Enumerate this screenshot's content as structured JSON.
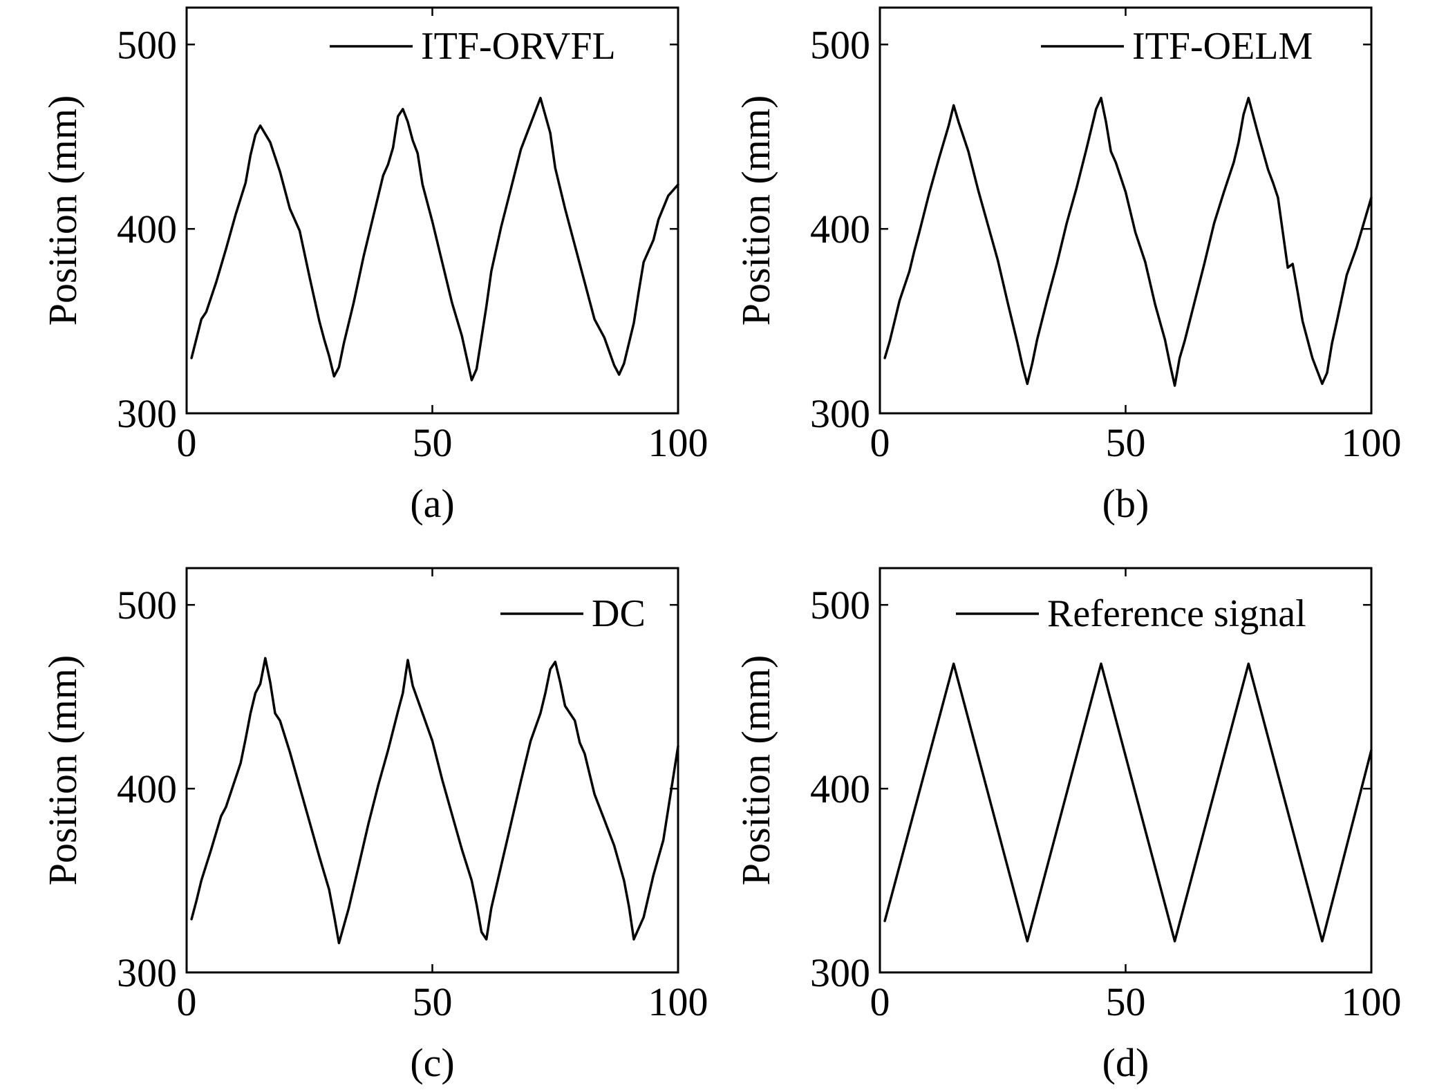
{
  "chart_data": [
    {
      "type": "line",
      "caption": "(a)",
      "xlabel": "",
      "ylabel": "Position (mm)",
      "xlim": [
        0,
        100
      ],
      "ylim": [
        300,
        520
      ],
      "xticks": [
        "0",
        "50",
        "100"
      ],
      "yticks": [
        "300",
        "400",
        "500"
      ],
      "grid": false,
      "legend_position": "top-right",
      "series": [
        {
          "name": "ITF-ORVFL",
          "color": "#000000",
          "x": [
            1,
            3,
            4,
            6,
            8,
            10,
            12,
            13,
            14,
            15,
            17,
            19,
            21,
            23,
            25,
            27,
            28,
            29,
            30,
            31,
            32,
            34,
            36,
            38,
            40,
            41,
            42,
            43,
            44,
            45,
            46,
            47,
            48,
            50,
            52,
            54,
            56,
            57,
            58,
            59,
            60,
            61,
            62,
            64,
            66,
            68,
            70,
            72,
            74,
            75,
            77,
            79,
            81,
            83,
            85,
            87,
            88,
            89,
            90,
            91,
            92,
            93,
            95,
            96,
            98,
            100
          ],
          "y": [
            330,
            351,
            355,
            371,
            389,
            408,
            425,
            440,
            451,
            456,
            447,
            431,
            411,
            399,
            374,
            350,
            340,
            331,
            320,
            325,
            338,
            360,
            385,
            407,
            429,
            435,
            444,
            461,
            465,
            458,
            448,
            441,
            424,
            404,
            382,
            360,
            342,
            330,
            318,
            324,
            341,
            358,
            377,
            401,
            422,
            443,
            457,
            471,
            452,
            433,
            411,
            391,
            371,
            351,
            341,
            326,
            321,
            327,
            338,
            349,
            366,
            382,
            394,
            405,
            418,
            424
          ]
        }
      ]
    },
    {
      "type": "line",
      "caption": "(b)",
      "xlabel": "",
      "ylabel": "Position (mm)",
      "xlim": [
        0,
        100
      ],
      "ylim": [
        300,
        520
      ],
      "xticks": [
        "0",
        "50",
        "100"
      ],
      "yticks": [
        "300",
        "400",
        "500"
      ],
      "grid": false,
      "legend_position": "top-right",
      "series": [
        {
          "name": "ITF-OELM",
          "color": "#000000",
          "x": [
            1,
            2,
            3,
            4,
            5,
            6,
            7,
            8,
            10,
            12,
            14,
            15,
            16,
            18,
            20,
            22,
            24,
            26,
            28,
            29,
            30,
            31,
            32,
            34,
            36,
            38,
            40,
            42,
            44,
            45,
            46,
            47,
            48,
            50,
            52,
            54,
            56,
            58,
            59,
            60,
            61,
            62,
            64,
            66,
            68,
            70,
            72,
            73,
            74,
            75,
            77,
            79,
            80,
            81,
            82,
            83,
            84,
            85,
            86,
            88,
            89,
            90,
            91,
            92,
            93,
            95,
            97,
            100
          ],
          "y": [
            330,
            339,
            350,
            361,
            369,
            377,
            388,
            398,
            419,
            438,
            456,
            467,
            458,
            442,
            421,
            402,
            383,
            360,
            338,
            326,
            316,
            327,
            340,
            361,
            381,
            403,
            422,
            443,
            465,
            471,
            458,
            442,
            436,
            420,
            398,
            382,
            359,
            340,
            327,
            315,
            330,
            339,
            360,
            381,
            403,
            420,
            436,
            447,
            462,
            471,
            451,
            432,
            425,
            417,
            398,
            379,
            381,
            366,
            350,
            330,
            323,
            316,
            322,
            338,
            350,
            375,
            390,
            417
          ]
        }
      ]
    },
    {
      "type": "line",
      "caption": "(c)",
      "xlabel": "",
      "ylabel": "Position (mm)",
      "xlim": [
        0,
        100
      ],
      "ylim": [
        300,
        520
      ],
      "xticks": [
        "0",
        "50",
        "100"
      ],
      "yticks": [
        "300",
        "400",
        "500"
      ],
      "grid": false,
      "legend_position": "top-right",
      "series": [
        {
          "name": "DC",
          "color": "#000000",
          "x": [
            1,
            2,
            3,
            5,
            7,
            8,
            9,
            11,
            12,
            13,
            14,
            15,
            16,
            17,
            18,
            19,
            21,
            23,
            25,
            27,
            29,
            30,
            31,
            33,
            35,
            37,
            39,
            41,
            43,
            44,
            45,
            46,
            48,
            50,
            52,
            54,
            56,
            58,
            59,
            60,
            61,
            62,
            64,
            66,
            68,
            70,
            72,
            73,
            74,
            75,
            76,
            77,
            79,
            80,
            81,
            83,
            85,
            87,
            89,
            90,
            91,
            93,
            95,
            97,
            100
          ],
          "y": [
            329,
            339,
            350,
            367,
            385,
            390,
            398,
            414,
            427,
            441,
            452,
            457,
            471,
            458,
            441,
            437,
            420,
            401,
            382,
            363,
            345,
            331,
            316,
            335,
            358,
            381,
            402,
            421,
            442,
            452,
            470,
            456,
            441,
            426,
            405,
            386,
            367,
            350,
            337,
            322,
            318,
            335,
            358,
            381,
            404,
            426,
            441,
            452,
            465,
            469,
            458,
            445,
            437,
            425,
            419,
            397,
            383,
            369,
            350,
            336,
            318,
            330,
            353,
            372,
            423
          ]
        }
      ]
    },
    {
      "type": "line",
      "caption": "(d)",
      "xlabel": "",
      "ylabel": "Position (mm)",
      "xlim": [
        0,
        100
      ],
      "ylim": [
        300,
        520
      ],
      "xticks": [
        "0",
        "50",
        "100"
      ],
      "yticks": [
        "300",
        "400",
        "500"
      ],
      "grid": false,
      "legend_position": "top-right",
      "series": [
        {
          "name": "Reference signal",
          "color": "#000000",
          "x": [
            1,
            15,
            30,
            45,
            60,
            75,
            90,
            100
          ],
          "y": [
            328,
            468,
            317,
            468,
            317,
            468,
            317,
            421
          ]
        }
      ]
    }
  ]
}
